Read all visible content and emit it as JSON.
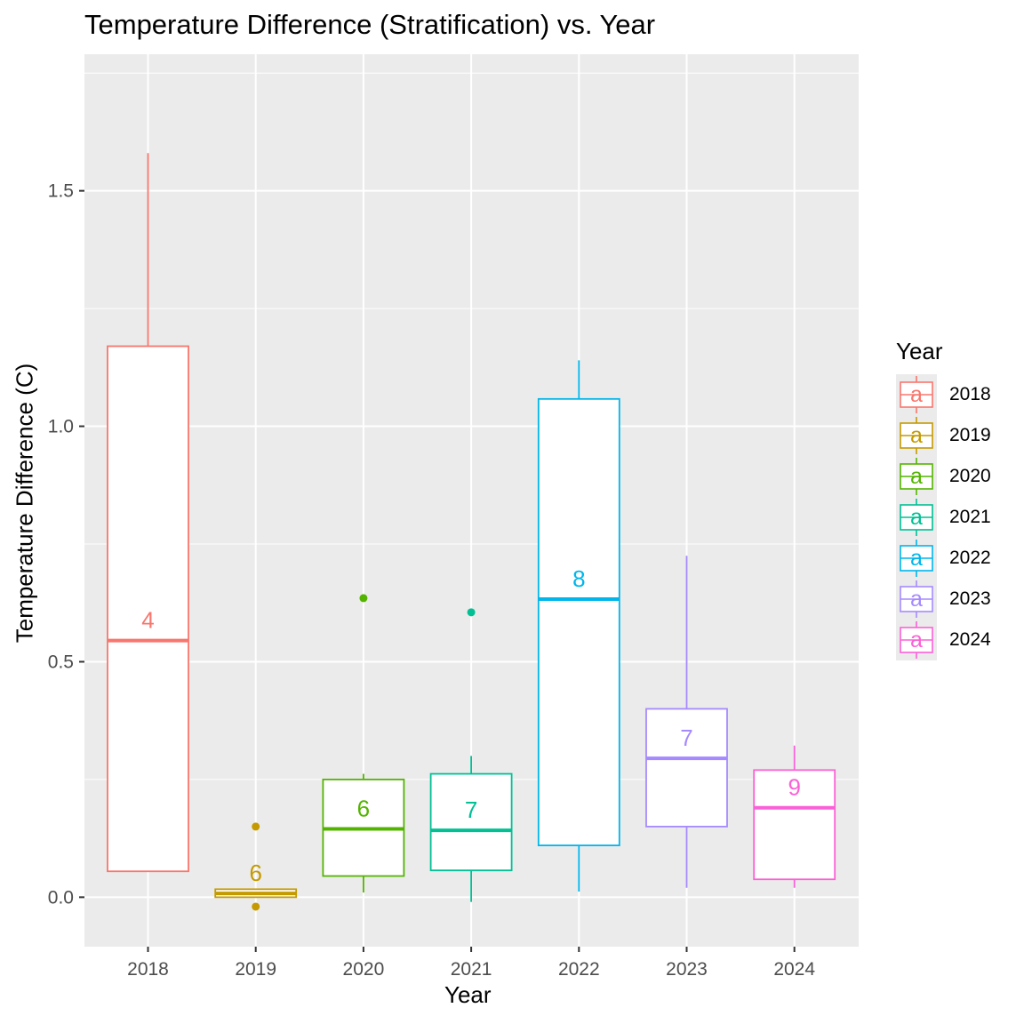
{
  "chart_data": {
    "type": "boxplot",
    "title": "Temperature Difference (Stratification) vs. Year",
    "xlabel": "Year",
    "ylabel": "Temperature Difference (C)",
    "ylim": [
      -0.105,
      1.79
    ],
    "y_ticks": [
      0.0,
      0.5,
      1.0,
      1.5
    ],
    "y_tick_labels": [
      "0.0",
      "0.5",
      "1.0",
      "1.5"
    ],
    "categories": [
      "2018",
      "2019",
      "2020",
      "2021",
      "2022",
      "2023",
      "2024"
    ],
    "grid": true,
    "legend": {
      "title": "Year",
      "position": "right",
      "key_glyph": "a"
    },
    "series": [
      {
        "name": "2018",
        "color": "#F8766D",
        "whisker_low": 0.055,
        "q1": 0.055,
        "median": 0.545,
        "q3": 1.17,
        "whisker_high": 1.58,
        "outliers": [],
        "count_label": "4"
      },
      {
        "name": "2019",
        "color": "#C49A00",
        "whisker_low": 0.0,
        "q1": 0.0,
        "median": 0.008,
        "q3": 0.017,
        "whisker_high": 0.017,
        "outliers": [
          0.15,
          -0.02
        ],
        "count_label": "6"
      },
      {
        "name": "2020",
        "color": "#53B400",
        "whisker_low": 0.01,
        "q1": 0.045,
        "median": 0.145,
        "q3": 0.25,
        "whisker_high": 0.262,
        "outliers": [
          0.635
        ],
        "count_label": "6"
      },
      {
        "name": "2021",
        "color": "#00C094",
        "whisker_low": -0.01,
        "q1": 0.057,
        "median": 0.142,
        "q3": 0.262,
        "whisker_high": 0.3,
        "outliers": [
          0.605
        ],
        "count_label": "7"
      },
      {
        "name": "2022",
        "color": "#00B6EB",
        "whisker_low": 0.012,
        "q1": 0.11,
        "median": 0.633,
        "q3": 1.058,
        "whisker_high": 1.14,
        "outliers": [],
        "count_label": "8"
      },
      {
        "name": "2023",
        "color": "#A58AFF",
        "whisker_low": 0.02,
        "q1": 0.15,
        "median": 0.295,
        "q3": 0.4,
        "whisker_high": 0.725,
        "outliers": [],
        "count_label": "7"
      },
      {
        "name": "2024",
        "color": "#FB61D7",
        "whisker_low": 0.02,
        "q1": 0.038,
        "median": 0.19,
        "q3": 0.27,
        "whisker_high": 0.322,
        "outliers": [],
        "count_label": "9"
      }
    ]
  }
}
